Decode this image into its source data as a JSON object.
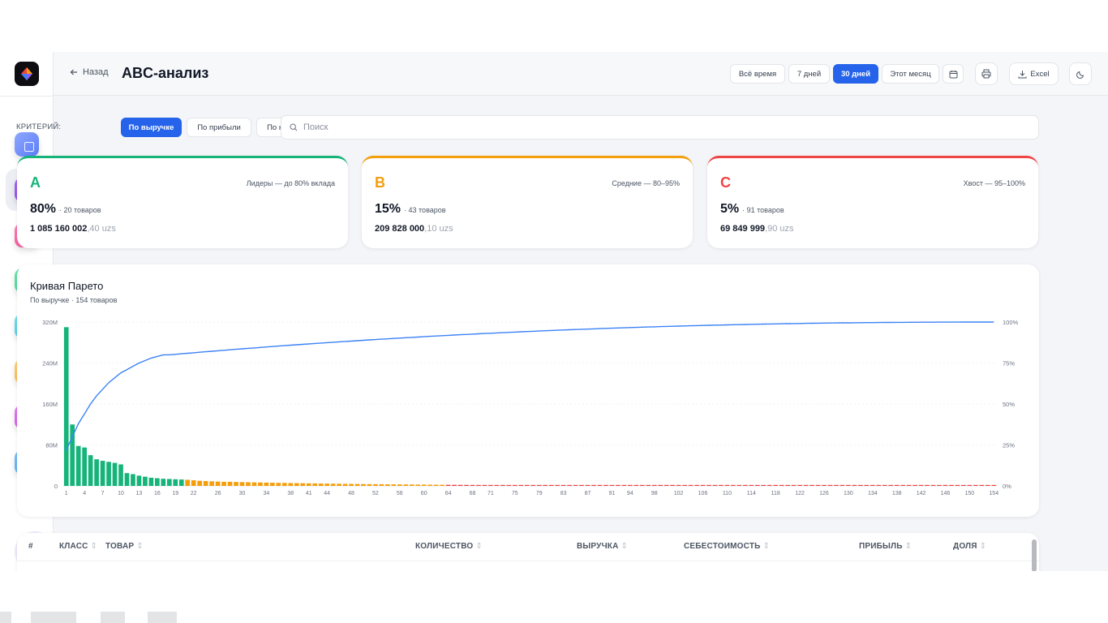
{
  "header": {
    "back_label": "Назад",
    "title": "ABC-анализ",
    "periods": [
      "Всё время",
      "7 дней",
      "30 дней",
      "Этот месяц"
    ],
    "active_period": "30 дней",
    "excel_label": "Excel"
  },
  "filters": {
    "criteria_label": "КРИТЕРИЙ:",
    "options": [
      "По выручке",
      "По прибыли",
      "По количеству"
    ],
    "active": "По выручке",
    "search_placeholder": "Поиск"
  },
  "classes": [
    {
      "letter": "A",
      "desc": "Лидеры — до 80% вклада",
      "pct": "80%",
      "count": "· 20 товаров",
      "amount": "1 085 160 002",
      "amount_dec": ",40 uzs",
      "color": "#16b47a"
    },
    {
      "letter": "B",
      "desc": "Средние — 80–95%",
      "pct": "15%",
      "count": "· 43 товаров",
      "amount": "209 828 000",
      "amount_dec": ",10 uzs",
      "color": "#f59e0b"
    },
    {
      "letter": "C",
      "desc": "Хвост — 95–100%",
      "pct": "5%",
      "count": "· 91 товаров",
      "amount": "69 849 999",
      "amount_dec": ",90 uzs",
      "color": "#ef4444"
    }
  ],
  "chart": {
    "title": "Кривая Парето",
    "subtitle": "По выручке · 154 товаров"
  },
  "chart_data": {
    "type": "bar",
    "x_tick_labels": [
      "1",
      "4",
      "7",
      "10",
      "13",
      "16",
      "19",
      "22",
      "26",
      "30",
      "34",
      "38",
      "41",
      "44",
      "48",
      "52",
      "56",
      "60",
      "64",
      "68",
      "71",
      "75",
      "79",
      "83",
      "87",
      "91",
      "94",
      "98",
      "102",
      "106",
      "110",
      "114",
      "118",
      "122",
      "126",
      "130",
      "134",
      "138",
      "142",
      "146",
      "150",
      "154"
    ],
    "y_left_ticks": [
      "0",
      "80M",
      "160M",
      "240M",
      "320M"
    ],
    "y_right_ticks": [
      "0%",
      "25%",
      "50%",
      "75%",
      "100%"
    ],
    "ylim_left": [
      0,
      320000000
    ],
    "ylim_right": [
      0,
      100
    ],
    "n_items": 154,
    "class_boundaries": {
      "A_end": 20,
      "B_end": 63
    },
    "series": [
      {
        "axis": "left",
        "type": "bar",
        "values_head": [
          310000000,
          120000000,
          78000000,
          75000000,
          60000000,
          52000000,
          49000000,
          47000000,
          45000000,
          42000000,
          25000000,
          23000000,
          20000000,
          18000000,
          16000000,
          15000000,
          14000000,
          13500000,
          13000000,
          12500000,
          12000000,
          11000000,
          10000000,
          9500000,
          9000000,
          8500000,
          8000000
        ]
      },
      {
        "axis": "right",
        "type": "line",
        "values_head": [
          22,
          30,
          38,
          44,
          50,
          55,
          59,
          63,
          66,
          69,
          71,
          73,
          75,
          76.5,
          78,
          79,
          80
        ]
      }
    ],
    "colors": {
      "A": "#16b47a",
      "B": "#f59e0b",
      "C": "#ef4444",
      "line": "#3b82f6"
    }
  },
  "table": {
    "headers": [
      "#",
      "КЛАСС",
      "ТОВАР",
      "КОЛИЧЕСТВО",
      "ВЫРУЧКА",
      "СЕБЕСТОИМОСТЬ",
      "ПРИБЫЛЬ",
      "ДОЛЯ"
    ]
  },
  "sidebar": {
    "items": [
      {
        "icon": "grid-icon",
        "color": "#6b8cff"
      },
      {
        "icon": "chart-icon",
        "color": "#8b46e8"
      },
      {
        "icon": "table-icon",
        "color": "#f0569c"
      },
      {
        "icon": "exchange-icon",
        "color": "#35d18a"
      },
      {
        "icon": "analytics-icon",
        "color": "#3fc6e0"
      },
      {
        "icon": "box-icon",
        "color": "#f2ae3c"
      },
      {
        "icon": "sparkle-icon",
        "color": "#d24be8"
      },
      {
        "icon": "sliders-icon",
        "color": "#4aa6ee"
      }
    ]
  }
}
